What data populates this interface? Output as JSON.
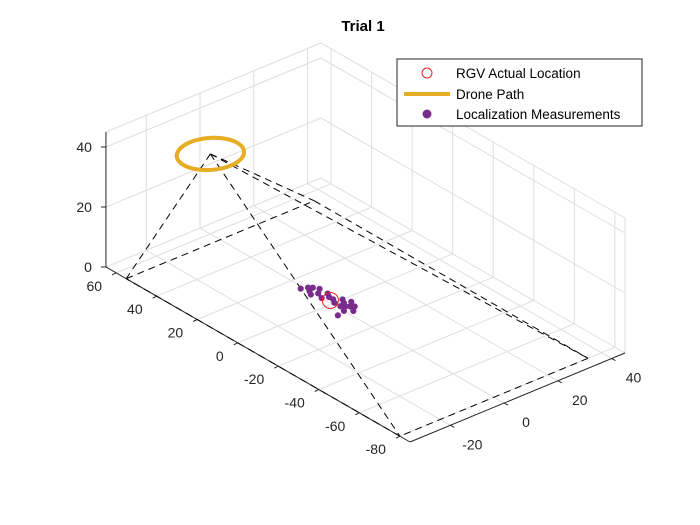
{
  "chart_data": {
    "type": "scatter3d",
    "title": "Trial 1",
    "grid": true,
    "legend_position": "top-right",
    "axes": {
      "x": {
        "ticks": [
          -20,
          0,
          20,
          40
        ],
        "tick_labels": [
          "-20",
          "0",
          "20",
          "40"
        ],
        "range": [
          -35,
          45
        ]
      },
      "y": {
        "ticks": [
          -80,
          -60,
          -40,
          -20,
          0,
          20,
          40,
          60
        ],
        "tick_labels": [
          "-80",
          "-60",
          "-40",
          "-20",
          "0",
          "20",
          "40",
          "60"
        ],
        "range": [
          -85,
          65
        ]
      },
      "z": {
        "ticks": [
          0,
          20,
          40
        ],
        "tick_labels": [
          "0",
          "20",
          "40"
        ],
        "range": [
          0,
          45
        ]
      }
    },
    "series": [
      {
        "name": "RGV Actual Location",
        "marker": "open-circle",
        "color": "#e8211f",
        "points": [
          [
            1,
            2,
            0
          ]
        ]
      },
      {
        "name": "Drone Path",
        "style": "line",
        "color": "#e6ad23",
        "center": [
          -15,
          40,
          40
        ],
        "radius": 10,
        "altitude": 40
      },
      {
        "name": "Localization Measurements",
        "marker": "filled-dot",
        "color": "#7a2c8c",
        "points": [
          [
            -1,
            14,
            0
          ],
          [
            1,
            13,
            0
          ],
          [
            0,
            11,
            0
          ],
          [
            3,
            10,
            0
          ],
          [
            2,
            12,
            0
          ],
          [
            -1,
            9,
            0
          ],
          [
            1,
            8,
            0
          ],
          [
            3,
            6,
            0
          ],
          [
            0,
            5,
            0
          ],
          [
            2,
            4,
            0
          ],
          [
            2,
            2,
            0
          ],
          [
            4,
            0,
            0
          ],
          [
            1,
            0,
            0
          ],
          [
            3,
            -2,
            0
          ],
          [
            2,
            -4,
            0
          ],
          [
            5,
            -3,
            0
          ],
          [
            0,
            -6,
            0
          ],
          [
            4,
            -6,
            0
          ],
          [
            -3,
            -7,
            0
          ],
          [
            2,
            -8,
            0
          ],
          [
            3,
            -5,
            0
          ],
          [
            1,
            -3,
            0
          ]
        ]
      },
      {
        "name": "",
        "style": "dashed",
        "color": "#000000",
        "note": "viewing pyramid from drone",
        "apex": [
          -15,
          40,
          40
        ],
        "base": [
          [
            35,
            55,
            0
          ],
          [
            35,
            -80,
            0
          ],
          [
            -35,
            -80,
            0
          ],
          [
            -35,
            55,
            0
          ]
        ]
      }
    ]
  }
}
